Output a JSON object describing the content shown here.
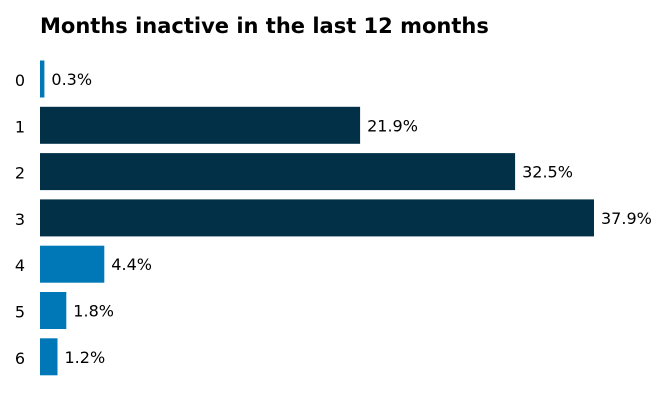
{
  "chart_data": {
    "type": "bar",
    "orientation": "horizontal",
    "title": "Months inactive in the last 12 months",
    "xlabel": "",
    "ylabel": "",
    "categories": [
      "0",
      "1",
      "2",
      "3",
      "4",
      "5",
      "6"
    ],
    "values": [
      0.3,
      21.9,
      32.5,
      37.9,
      4.4,
      1.8,
      1.2
    ],
    "data_labels": [
      "0.3%",
      "21.9%",
      "32.5%",
      "37.9%",
      "4.4%",
      "1.8%",
      "1.2%"
    ],
    "bar_colors": [
      "#0077b6",
      "#023047",
      "#023047",
      "#023047",
      "#0077b6",
      "#0077b6",
      "#0077b6"
    ],
    "xlim": [
      0,
      37.9
    ],
    "grid": false,
    "legend": "none"
  }
}
